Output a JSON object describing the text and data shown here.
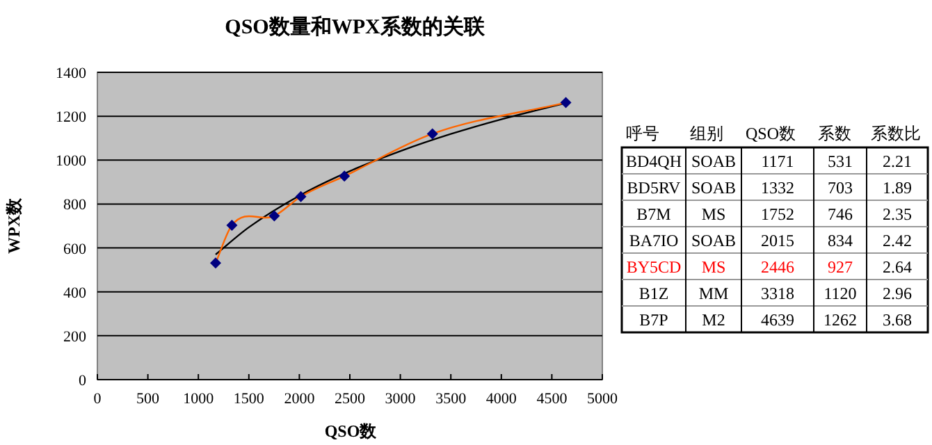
{
  "chart_data": [
    {
      "type": "scatter",
      "title": "QSO数量和WPX系数的关联",
      "xlabel": "QSO数",
      "ylabel": "WPX数",
      "xlim": [
        0,
        5000
      ],
      "xticks": [
        0,
        500,
        1000,
        1500,
        2000,
        2500,
        3000,
        3500,
        4000,
        4500,
        5000
      ],
      "ylim": [
        0,
        1400
      ],
      "yticks": [
        0,
        200,
        400,
        600,
        800,
        1000,
        1200,
        1400
      ],
      "grid": "y",
      "series": [
        {
          "type": "line",
          "color": "#000000",
          "x": [
            1171,
            1500,
            2000,
            2500,
            3000,
            3500,
            4000,
            4639
          ],
          "values": [
            570,
            694,
            838,
            950,
            1041,
            1119,
            1186,
            1260
          ],
          "marker": "none"
        },
        {
          "type": "line",
          "color": "#ff6600",
          "x": [
            1171,
            1332,
            1752,
            2015,
            2446,
            3318,
            4639
          ],
          "values": [
            531,
            703,
            746,
            834,
            927,
            1120,
            1262
          ],
          "marker": "none"
        },
        {
          "type": "scatter",
          "color": "#000080",
          "x": [
            1171,
            1332,
            1752,
            2015,
            2446,
            3318,
            4639
          ],
          "values": [
            531,
            703,
            746,
            834,
            927,
            1120,
            1262
          ],
          "marker": "diamond"
        }
      ]
    },
    {
      "type": "other",
      "categories": [
        "呼号",
        "组别",
        "QSO数",
        "系数",
        "系数比"
      ],
      "annotations": [
        "BD4QH",
        "SOAB",
        "1171",
        "531",
        "2.21",
        "BD5RV",
        "SOAB",
        "1332",
        "703",
        "1.89",
        "B7M",
        "MS",
        "1752",
        "746",
        "2.35",
        "BA7IO",
        "SOAB",
        "2015",
        "834",
        "2.42",
        "BY5CD",
        "MS",
        "2446",
        "927",
        "2.64",
        "B1Z",
        "MM",
        "3318",
        "1120",
        "2.96",
        "B7P",
        "M2",
        "4639",
        "1262",
        "3.68"
      ],
      "colors": [
        "#000000",
        "#000000",
        "#000000",
        "#000000",
        "#000000",
        "#000000",
        "#000000",
        "#000000",
        "#000000",
        "#000000",
        "#000000",
        "#000000",
        "#000000",
        "#000000",
        "#000000",
        "#000000",
        "#000000",
        "#000000",
        "#000000",
        "#000000",
        "#ff0000",
        "#ff0000",
        "#ff0000",
        "#ff0000",
        "#000000",
        "#000000",
        "#000000",
        "#000000",
        "#000000",
        "#000000",
        "#000000",
        "#000000",
        "#000000",
        "#000000",
        "#000000"
      ]
    }
  ]
}
